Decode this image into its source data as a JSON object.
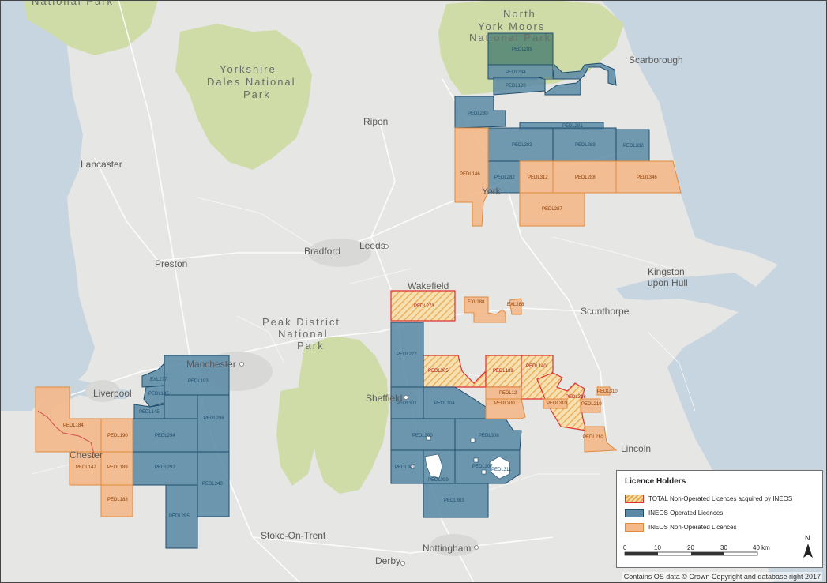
{
  "colors": {
    "sea": "#c6d5df",
    "land": "#e6e6e4",
    "park": "#cfdca8",
    "operated": "#5b8aa6",
    "operated_edge": "#1f4e6e",
    "non_operated": "#f4b889",
    "non_operated_edge": "#e08a3e",
    "total": "#e8c77c",
    "total_edge": "#e03030"
  },
  "places": {
    "scarborough": "Scarborough",
    "ripon": "Ripon",
    "lancaster": "Lancaster",
    "bradford": "Bradford",
    "leeds": "Leeds",
    "preston": "Preston",
    "wakefield": "Wakefield",
    "kingston1": "Kingston",
    "kingston2": "upon Hull",
    "scunthorpe": "Scunthorpe",
    "manchester": "Manchester",
    "liverpool": "Liverpool",
    "sheffield": "Sheffield",
    "chester": "Chester",
    "lincoln": "Lincoln",
    "stoke": "Stoke-On-Trent",
    "nottingham": "Nottingham",
    "derby": "Derby",
    "york": "York"
  },
  "parks": {
    "top_left": "National Park",
    "nym1": "North",
    "nym2": "York Moors",
    "nym3": "National Park",
    "yd1": "Yorkshire",
    "yd2": "Dales National",
    "yd3": "Park",
    "pd1": "Peak District",
    "pd2": "National",
    "pd3": "Park"
  },
  "licences": {
    "pedl285": "PEDL285",
    "pedl284": "PEDL284",
    "pedl120": "PEDL120",
    "pedl280": "PEDL280",
    "pedl291": "PEDL291",
    "pedl283": "PEDL283",
    "pedl289": "PEDL289",
    "pedl332": "PEDL332",
    "pedl146": "PEDL146",
    "pedl282": "PEDL282",
    "pedl312": "PEDL312",
    "pedl288": "PEDL288",
    "pedl346": "PEDL346",
    "pedl287": "PEDL287",
    "pedl273": "PEDL273",
    "exl288": "EXL288",
    "exl288b": "EXL288",
    "pedl272": "PEDL272",
    "pedl305": "PEDL305",
    "pedl139": "PEDL139",
    "pedl140": "PEDL140",
    "pedl12": "PEDL12",
    "pedl200": "PEDL200",
    "pedl301": "PEDL301",
    "pedl304": "PEDL304",
    "pedl316": "PEDL316",
    "pedl310": "PEDL310",
    "pedl310b": "PEDL310",
    "pedl210": "PEDL210",
    "pedl210b": "PEDL210",
    "pedl300": "PEDL300",
    "pedl308": "PEDL308",
    "pedl349": "PEDL349",
    "pedl299": "PEDL299",
    "pedl307": "PEDL307",
    "pedl311": "PEDL311",
    "pedl303": "PEDL303",
    "exl277": "EXL277",
    "pedl145": "PEDL145",
    "pedl145b": "PEDL145",
    "pedl193": "PEDL193",
    "pedl184": "PEDL184",
    "pedl190": "PEDL190",
    "pedl294": "PEDL294",
    "pedl296": "PEDL296",
    "pedl147": "PEDL147",
    "pedl189": "PEDL189",
    "pedl292": "PEDL292",
    "pedl240": "PEDL240",
    "pedl188": "PEDL188",
    "pedl295": "PEDL295"
  },
  "legend": {
    "title": "Licence Holders",
    "items": [
      "TOTAL Non-Operated Licences acquired by INEOS",
      "INEOS Operated Licences",
      "INEOS Non-Operated Licences"
    ],
    "scale": {
      "ticks": [
        "0",
        "10",
        "20",
        "30",
        "40 km"
      ],
      "north": "N"
    }
  },
  "credit": "Contains OS data © Crown Copyright and database right 2017"
}
